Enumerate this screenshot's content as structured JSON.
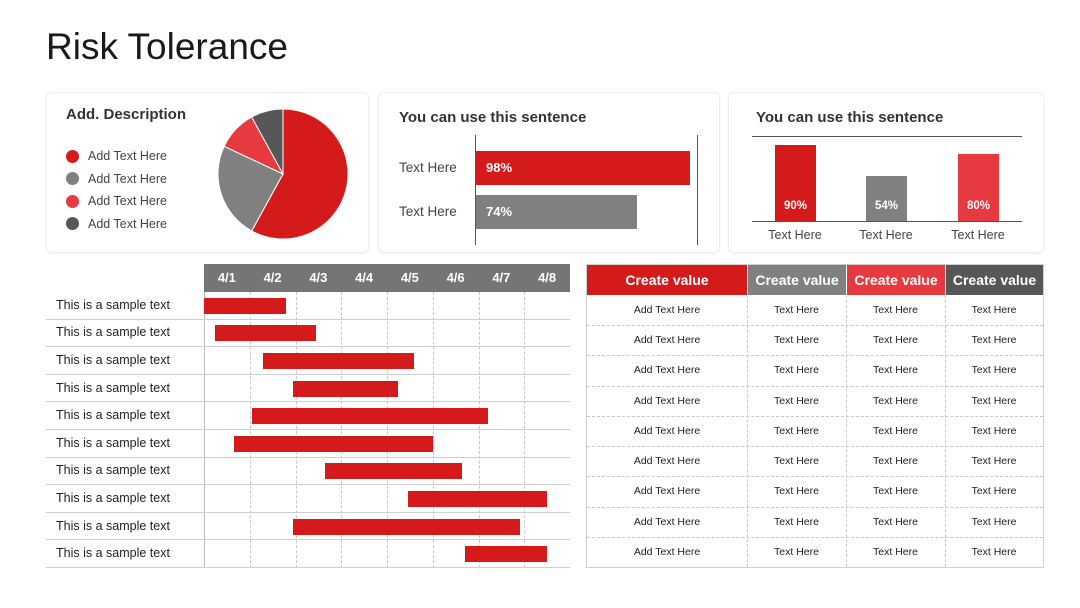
{
  "page": {
    "title": "Risk Tolerance"
  },
  "colors": {
    "red": "#d41a1a",
    "gray": "#808080",
    "light_red": "#e63a40",
    "dark_gray": "#575757"
  },
  "cards": {
    "pie": {
      "heading": "Add. Description",
      "legend": [
        {
          "label": "Add Text Here",
          "color": "#d41a1a"
        },
        {
          "label": "Add Text Here",
          "color": "#808080"
        },
        {
          "label": "Add Text Here",
          "color": "#e63a40"
        },
        {
          "label": "Add Text Here",
          "color": "#575757"
        }
      ]
    },
    "hbar": {
      "heading": "You can use this sentence"
    },
    "vbar": {
      "heading": "You can use this sentence"
    }
  },
  "chart_data": [
    {
      "type": "pie",
      "slices": [
        {
          "value": 58,
          "color": "#d41a1a"
        },
        {
          "value": 24,
          "color": "#808080"
        },
        {
          "value": 10,
          "color": "#e63a40"
        },
        {
          "value": 8,
          "color": "#575757"
        }
      ]
    },
    {
      "type": "bar",
      "orientation": "horizontal",
      "categories": [
        "Text Here",
        "Text Here"
      ],
      "values": [
        98,
        74
      ],
      "value_labels": [
        "98%",
        "74%"
      ],
      "colors": [
        "#d41a1a",
        "#808080"
      ],
      "xlim": [
        0,
        100
      ]
    },
    {
      "type": "bar",
      "orientation": "vertical",
      "categories": [
        "Text Here",
        "Text Here",
        "Text Here"
      ],
      "values": [
        90,
        54,
        80
      ],
      "value_labels": [
        "90%",
        "54%",
        "80%"
      ],
      "colors": [
        "#d41a1a",
        "#808080",
        "#e63a40"
      ],
      "ylim": [
        0,
        100
      ]
    },
    {
      "type": "gantt",
      "dates": [
        "4/1",
        "4/2",
        "4/3",
        "4/4",
        "4/5",
        "4/6",
        "4/7",
        "4/8"
      ],
      "tasks": [
        {
          "label": "This is a sample text",
          "start": 0.0,
          "end": 1.8
        },
        {
          "label": "This is a sample text",
          "start": 0.25,
          "end": 2.45
        },
        {
          "label": "This is a sample text",
          "start": 1.3,
          "end": 4.6
        },
        {
          "label": "This is a sample text",
          "start": 1.95,
          "end": 4.25
        },
        {
          "label": "This is a sample text",
          "start": 1.05,
          "end": 6.2
        },
        {
          "label": "This is a sample text",
          "start": 0.65,
          "end": 5.0
        },
        {
          "label": "This is a sample text",
          "start": 2.65,
          "end": 5.65
        },
        {
          "label": "This is a sample text",
          "start": 4.45,
          "end": 7.5
        },
        {
          "label": "This is a sample text",
          "start": 1.95,
          "end": 6.9
        },
        {
          "label": "This is a sample text",
          "start": 5.7,
          "end": 7.5
        }
      ]
    }
  ],
  "table": {
    "headers": [
      {
        "label": "Create value",
        "color": "#d41a1a"
      },
      {
        "label": "Create value",
        "color": "#808080"
      },
      {
        "label": "Create value",
        "color": "#e63a40"
      },
      {
        "label": "Create value",
        "color": "#575757"
      }
    ],
    "rows": [
      [
        "Add Text Here",
        "Text Here",
        "Text Here",
        "Text Here"
      ],
      [
        "Add Text Here",
        "Text Here",
        "Text Here",
        "Text Here"
      ],
      [
        "Add Text Here",
        "Text Here",
        "Text Here",
        "Text Here"
      ],
      [
        "Add Text Here",
        "Text Here",
        "Text Here",
        "Text Here"
      ],
      [
        "Add Text Here",
        "Text Here",
        "Text Here",
        "Text Here"
      ],
      [
        "Add Text Here",
        "Text Here",
        "Text Here",
        "Text Here"
      ],
      [
        "Add Text Here",
        "Text Here",
        "Text Here",
        "Text Here"
      ],
      [
        "Add Text Here",
        "Text Here",
        "Text Here",
        "Text Here"
      ],
      [
        "Add Text Here",
        "Text Here",
        "Text Here",
        "Text Here"
      ]
    ]
  }
}
